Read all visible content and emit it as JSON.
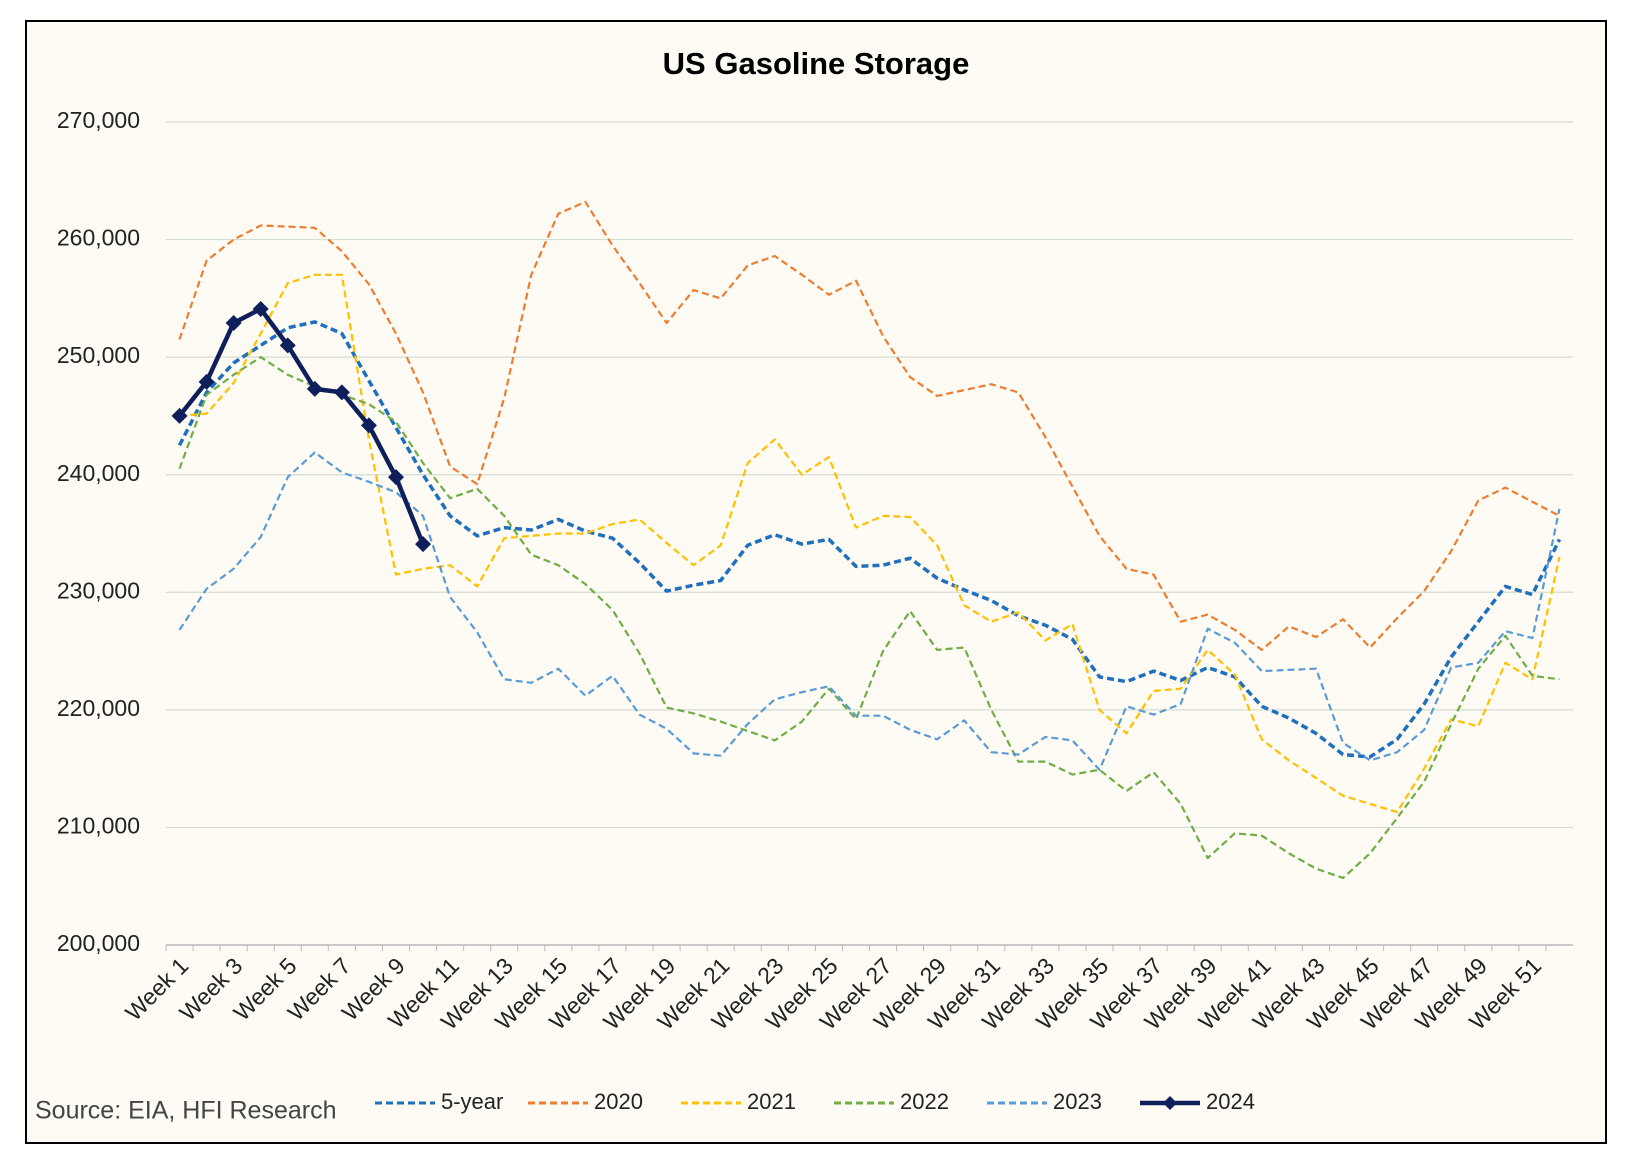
{
  "chart_data": {
    "type": "line",
    "title": "US Gasoline Storage",
    "source": "Source: EIA, HFI Research",
    "categories": [
      "Week 1",
      null,
      "Week 3",
      null,
      "Week 5",
      null,
      "Week 7",
      null,
      "Week 9",
      null,
      "Week 11",
      null,
      "Week 13",
      null,
      "Week 15",
      null,
      "Week 17",
      null,
      "Week 19",
      null,
      "Week 21",
      null,
      "Week 23",
      null,
      "Week 25",
      null,
      "Week 27",
      null,
      "Week 29",
      null,
      "Week 31",
      null,
      "Week 33",
      null,
      "Week 35",
      null,
      "Week 37",
      null,
      "Week 39",
      null,
      "Week 41",
      null,
      "Week 43",
      null,
      "Week 45",
      null,
      "Week 47",
      null,
      "Week 49",
      null,
      "Week 51",
      null
    ],
    "ylim": [
      200000,
      270000
    ],
    "yticks": [
      {
        "value": 200000,
        "label": "200,000"
      },
      {
        "value": 210000,
        "label": "210,000"
      },
      {
        "value": 220000,
        "label": "220,000"
      },
      {
        "value": 230000,
        "label": "230,000"
      },
      {
        "value": 240000,
        "label": "240,000"
      },
      {
        "value": 250000,
        "label": "250,000"
      },
      {
        "value": 260000,
        "label": "260,000"
      },
      {
        "value": 270000,
        "label": "270,000"
      }
    ],
    "grid": true,
    "legend": "bottom",
    "series": [
      {
        "name": "5-year",
        "color": "#1f6fbf",
        "dashed": true,
        "values": [
          242500,
          247000,
          249500,
          251000,
          252500,
          253000,
          252000,
          248000,
          244000,
          240000,
          236500,
          234800,
          235500,
          235300,
          236200,
          235200,
          234600,
          232500,
          230100,
          230600,
          231000,
          234000,
          234900,
          234100,
          234500,
          232200,
          232300,
          232900,
          231200,
          230200,
          229300,
          228000,
          227200,
          226000,
          222800,
          222400,
          223300,
          222500,
          223600,
          222800,
          220300,
          219300,
          218000,
          216200,
          216000,
          217500,
          220500,
          224500,
          227500,
          230500,
          229800,
          234500
        ]
      },
      {
        "name": "2020",
        "color": "#ed7d31",
        "dashed": true,
        "values": [
          251500,
          258200,
          260000,
          261200,
          261100,
          261000,
          259000,
          256200,
          252000,
          247000,
          240700,
          239200,
          246500,
          257000,
          262200,
          263200,
          259500,
          256300,
          252900,
          255700,
          255000,
          257800,
          258600,
          257000,
          255300,
          256500,
          251800,
          248300,
          246700,
          247200,
          247700,
          247000,
          243200,
          239000,
          234800,
          232000,
          231500,
          227500,
          228100,
          226800,
          225100,
          227100,
          226200,
          227700,
          225300,
          227800,
          230100,
          233500,
          237800,
          238900,
          237700,
          236500
        ]
      },
      {
        "name": "2021",
        "color": "#ffc000",
        "dashed": true,
        "values": [
          245000,
          245200,
          247800,
          252000,
          256300,
          257000,
          257000,
          243000,
          231500,
          232000,
          232300,
          230500,
          234600,
          234800,
          235000,
          235000,
          235800,
          236200,
          234200,
          232300,
          234000,
          241000,
          243000,
          240000,
          241500,
          235500,
          236500,
          236400,
          234000,
          228900,
          227500,
          228300,
          225900,
          227300,
          220000,
          218000,
          221600,
          221800,
          225100,
          223000,
          217500,
          215700,
          214200,
          212700,
          212000,
          211300,
          215000,
          219200,
          218600,
          224000,
          222600,
          233000
        ]
      },
      {
        "name": "2022",
        "color": "#70ad47",
        "dashed": true,
        "values": [
          240500,
          246800,
          248500,
          250000,
          248500,
          247500,
          246800,
          246000,
          244500,
          241000,
          238000,
          238800,
          236500,
          233200,
          232300,
          230700,
          228500,
          224800,
          220200,
          219700,
          219000,
          218200,
          217400,
          219000,
          221800,
          219200,
          225000,
          228400,
          225100,
          225300,
          220000,
          215600,
          215600,
          214500,
          214900,
          213100,
          214700,
          212000,
          207400,
          209500,
          209300,
          207800,
          206500,
          205700,
          207800,
          210800,
          213900,
          218800,
          223500,
          226300,
          222900,
          222600
        ]
      },
      {
        "name": "2023",
        "color": "#5b9bd5",
        "dashed": true,
        "values": [
          226800,
          230300,
          232000,
          234700,
          239800,
          241900,
          240200,
          239400,
          238500,
          236500,
          229600,
          226600,
          222600,
          222300,
          223500,
          221200,
          222900,
          219600,
          218400,
          216300,
          216100,
          218800,
          220900,
          221500,
          222000,
          219500,
          219500,
          218300,
          217500,
          219100,
          216400,
          216200,
          217700,
          217400,
          214900,
          220300,
          219600,
          220500,
          226900,
          225700,
          223300,
          223400,
          223500,
          217200,
          215700,
          216400,
          218300,
          223600,
          224000,
          226700,
          226100,
          237100
        ]
      },
      {
        "name": "2024",
        "color": "#0e1f5b",
        "dashed": false,
        "markers": "diamond",
        "values": [
          245000,
          247900,
          252900,
          254100,
          251000,
          247300,
          247000,
          244200,
          239800,
          234100,
          null,
          null,
          null,
          null,
          null,
          null,
          null,
          null,
          null,
          null,
          null,
          null,
          null,
          null,
          null,
          null,
          null,
          null,
          null,
          null,
          null,
          null,
          null,
          null,
          null,
          null,
          null,
          null,
          null,
          null,
          null,
          null,
          null,
          null,
          null,
          null,
          null,
          null,
          null,
          null,
          null,
          null
        ]
      }
    ]
  }
}
